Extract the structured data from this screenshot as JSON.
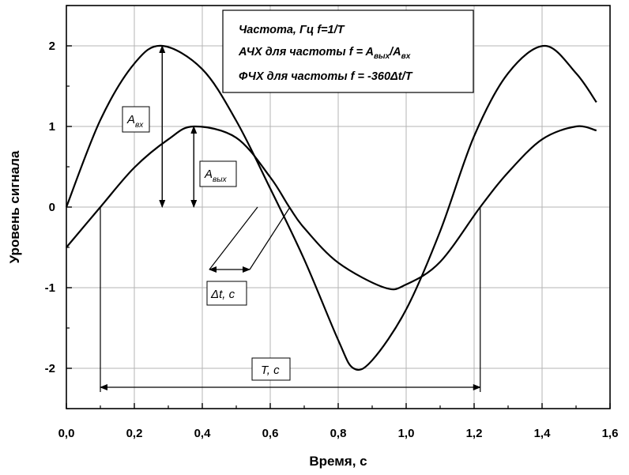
{
  "chart_data": {
    "type": "line",
    "xlabel": "Время, с",
    "ylabel": "Уровень сигнала",
    "xlim": [
      0.0,
      1.6
    ],
    "ylim": [
      -2.5,
      2.5
    ],
    "x_ticks": [
      "0,0",
      "0,2",
      "0,4",
      "0,6",
      "0,8",
      "1,0",
      "1,2",
      "1,4",
      "1,6"
    ],
    "y_ticks": [
      "2",
      "1",
      "0",
      "-1",
      "-2"
    ],
    "grid": true,
    "series": [
      {
        "x": [
          0.0,
          0.1,
          0.2,
          0.282,
          0.4,
          0.5,
          0.6,
          0.7,
          0.8,
          0.845,
          0.9,
          1.0,
          1.1,
          1.2,
          1.3,
          1.408,
          1.5,
          1.56
        ],
        "values": [
          0.0,
          1.08,
          1.78,
          2.0,
          1.71,
          1.07,
          0.23,
          -0.65,
          -1.65,
          -2.0,
          -1.9,
          -1.27,
          -0.3,
          0.88,
          1.66,
          2.0,
          1.66,
          1.3
        ]
      },
      {
        "x": [
          0.0,
          0.1,
          0.2,
          0.3,
          0.375,
          0.5,
          0.6,
          0.656,
          0.7,
          0.8,
          0.937,
          1.0,
          1.1,
          1.218,
          1.3,
          1.4,
          1.5,
          1.56
        ],
        "values": [
          -0.5,
          0.0,
          0.49,
          0.84,
          1.0,
          0.86,
          0.37,
          0.0,
          -0.26,
          -0.69,
          -1.0,
          -0.96,
          -0.68,
          0.0,
          0.43,
          0.84,
          1.0,
          0.95
        ]
      }
    ],
    "legend": {
      "line1": "Частота, Гц f=1/T",
      "line2_pre": "АЧХ для частоты f = A",
      "line2_sub1": "вых",
      "line2_mid": "/A",
      "line2_sub2": "вх",
      "line3": "ФЧХ для частоты f = -360Δt/T"
    },
    "annotations": {
      "a_in_main": "A",
      "a_in_sub": "вх",
      "a_out_main": "A",
      "a_out_sub": "вых",
      "dt_label": "Δt, c",
      "period_label": "T, c"
    }
  }
}
